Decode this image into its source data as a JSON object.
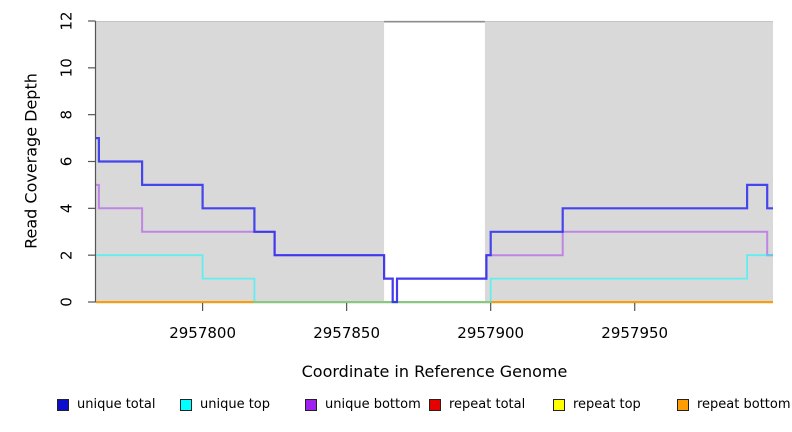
{
  "chart_data": {
    "type": "line",
    "subtype": "step-coverage-plot",
    "title": "",
    "xlabel": "Coordinate in Reference Genome",
    "ylabel": "Read Coverage Depth",
    "xlim": [
      2957763,
      2957998
    ],
    "ylim": [
      0,
      12
    ],
    "x_ticks": [
      2957800,
      2957850,
      2957900,
      2957950
    ],
    "y_ticks": [
      0,
      2,
      4,
      6,
      8,
      10,
      12
    ],
    "grid": false,
    "legend_position": "bottom",
    "panel_color": "#d9d9d9",
    "gap_border_color": "#8c8c8c",
    "axis_color": "#555555",
    "covered_regions": [
      [
        2957763,
        2957863
      ],
      [
        2957898,
        2957998
      ]
    ],
    "uncovered_gap": [
      2957863,
      2957898
    ],
    "series": [
      {
        "name": "repeat total",
        "color": "#e60000",
        "opacity": 1,
        "width": 2,
        "steps": [
          [
            2957763,
            0
          ],
          [
            2957998,
            0
          ]
        ]
      },
      {
        "name": "repeat top",
        "color": "#ffff00",
        "opacity": 1,
        "width": 2,
        "steps": [
          [
            2957763,
            0
          ],
          [
            2957998,
            0
          ]
        ]
      },
      {
        "name": "repeat bottom",
        "color": "#ff9d00",
        "opacity": 1,
        "width": 2,
        "steps": [
          [
            2957763,
            0
          ],
          [
            2957998,
            0
          ]
        ]
      },
      {
        "name": "unique bottom",
        "color": "#a020f0",
        "opacity": 0.45,
        "width": 2,
        "steps": [
          [
            2957763,
            5
          ],
          [
            2957764,
            4
          ],
          [
            2957779,
            3
          ],
          [
            2957825,
            2
          ],
          [
            2957863,
            1
          ],
          [
            2957866,
            0
          ],
          [
            2957867.5,
            1
          ],
          [
            2957898.5,
            2
          ],
          [
            2957925,
            3
          ],
          [
            2957996,
            2
          ],
          [
            2957998,
            2
          ]
        ]
      },
      {
        "name": "unique top",
        "color": "#00ffff",
        "opacity": 0.55,
        "width": 1.8,
        "steps": [
          [
            2957763,
            2
          ],
          [
            2957800,
            1
          ],
          [
            2957818,
            0
          ],
          [
            2957900,
            1
          ],
          [
            2957989,
            2
          ],
          [
            2957998,
            2
          ]
        ]
      },
      {
        "name": "unique total",
        "color": "#2a2aee",
        "opacity": 0.85,
        "width": 2.2,
        "steps": [
          [
            2957763,
            7
          ],
          [
            2957764,
            6
          ],
          [
            2957779,
            5
          ],
          [
            2957800,
            4
          ],
          [
            2957818,
            3
          ],
          [
            2957825,
            2
          ],
          [
            2957863,
            1
          ],
          [
            2957866,
            0
          ],
          [
            2957867.5,
            1
          ],
          [
            2957898.5,
            2
          ],
          [
            2957900,
            3
          ],
          [
            2957925,
            4
          ],
          [
            2957989,
            5
          ],
          [
            2957996,
            4
          ],
          [
            2957998,
            4
          ]
        ]
      }
    ],
    "legend": [
      {
        "label": "unique total",
        "color": "#0d0dcd"
      },
      {
        "label": "unique top",
        "color": "#00ffff"
      },
      {
        "label": "unique bottom",
        "color": "#a020f0"
      },
      {
        "label": "repeat total",
        "color": "#e60000"
      },
      {
        "label": "repeat top",
        "color": "#ffff00"
      },
      {
        "label": "repeat bottom",
        "color": "#ff9d00"
      }
    ]
  }
}
